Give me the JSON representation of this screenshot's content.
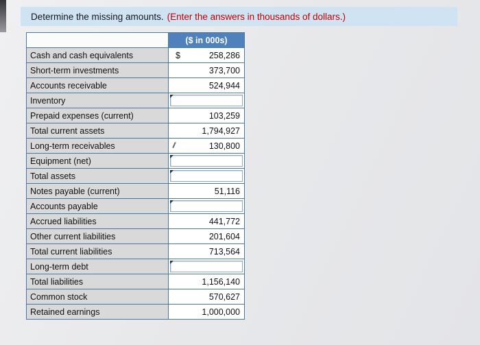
{
  "header": {
    "instruction": "Determine the missing amounts.",
    "note": "(Enter the answers in thousands of dollars.)"
  },
  "table": {
    "value_header": "($ in 000s)",
    "currency_symbol": "$",
    "rows": [
      {
        "label": "Cash and cash equivalents",
        "value": "258,286",
        "input": false,
        "show_currency": true
      },
      {
        "label": "Short-term investments",
        "value": "373,700",
        "input": false
      },
      {
        "label": "Accounts receivable",
        "value": "524,944",
        "input": false
      },
      {
        "label": "Inventory",
        "value": "",
        "input": true
      },
      {
        "label": "Prepaid expenses (current)",
        "value": "103,259",
        "input": false
      },
      {
        "label": "Total current assets",
        "value": "1,794,927",
        "input": false
      },
      {
        "label": "Long-term receivables",
        "value": "130,800",
        "input": false
      },
      {
        "label": "Equipment (net)",
        "value": "",
        "input": true
      },
      {
        "label": "Total assets",
        "value": "",
        "input": true
      },
      {
        "label": "Notes payable (current)",
        "value": "51,116",
        "input": false
      },
      {
        "label": "Accounts payable",
        "value": "",
        "input": true
      },
      {
        "label": "Accrued liabilities",
        "value": "441,772",
        "input": false
      },
      {
        "label": "Other current liabilities",
        "value": "201,604",
        "input": false
      },
      {
        "label": "Total current liabilities",
        "value": "713,564",
        "input": false
      },
      {
        "label": "Long-term debt",
        "value": "",
        "input": true
      },
      {
        "label": "Total liabilities",
        "value": "1,156,140",
        "input": false
      },
      {
        "label": "Common stock",
        "value": "570,627",
        "input": false
      },
      {
        "label": "Retained earnings",
        "value": "1,000,000",
        "input": false
      }
    ]
  },
  "colors": {
    "prompt_bar_bg": "#cfe3f2",
    "note_red": "#c00000",
    "table_header_bg": "#4f81bd",
    "table_header_text": "#ffffff",
    "label_cell_bg": "#d9d9d9",
    "grid_border": "#49779f",
    "page_bg": "#e8e9eb"
  }
}
